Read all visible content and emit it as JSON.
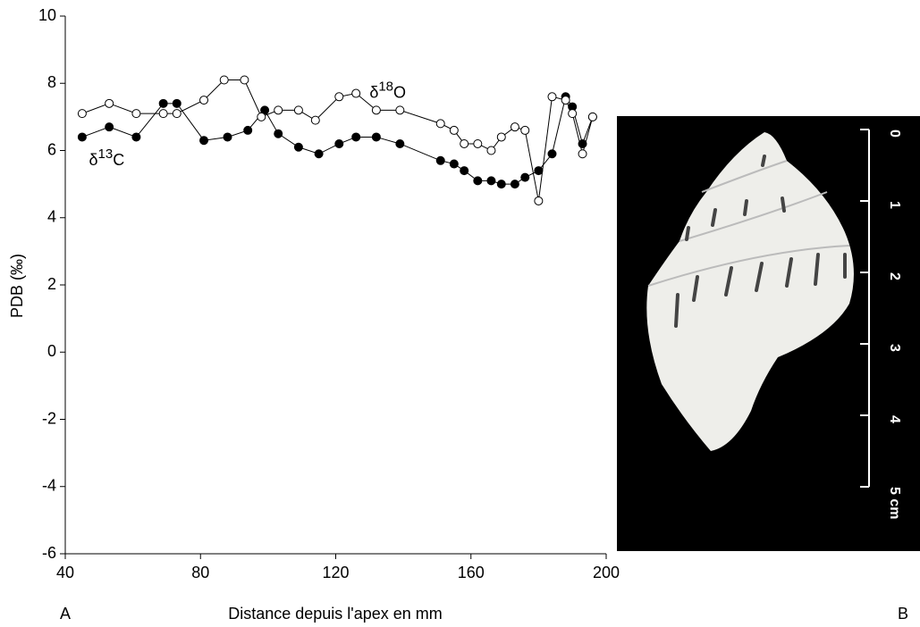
{
  "chart_data": {
    "type": "line",
    "x_label": "Distance depuis l'apex en mm",
    "y_label": "PDB (‰)",
    "panel_label": "A",
    "xlim": [
      40,
      200
    ],
    "xticks": [
      40,
      80,
      120,
      160,
      200
    ],
    "ylim": [
      -6,
      10
    ],
    "yticks": [
      -6,
      -4,
      -2,
      0,
      2,
      4,
      6,
      8,
      10
    ],
    "series": [
      {
        "marker": "filled",
        "color": "#000000",
        "x": [
          45,
          53,
          61,
          69,
          73,
          81,
          88,
          94,
          99,
          103,
          109,
          115,
          121,
          126,
          132,
          139,
          151,
          155,
          158,
          162,
          166,
          169,
          173,
          176,
          180,
          184,
          188,
          190,
          193,
          196
        ],
        "values": [
          6.4,
          6.7,
          6.4,
          7.4,
          7.4,
          6.3,
          6.4,
          6.6,
          7.2,
          6.5,
          6.1,
          5.9,
          6.2,
          6.4,
          6.4,
          6.2,
          5.7,
          5.6,
          5.4,
          5.1,
          5.1,
          5.0,
          5.0,
          5.2,
          5.4,
          5.9,
          7.6,
          7.3,
          6.2,
          7.0
        ]
      },
      {
        "marker": "open",
        "color": "#000000",
        "x": [
          45,
          53,
          61,
          69,
          73,
          81,
          87,
          93,
          98,
          103,
          109,
          114,
          121,
          126,
          132,
          139,
          151,
          155,
          158,
          162,
          166,
          169,
          173,
          176,
          180,
          184,
          188,
          190,
          193,
          196
        ],
        "values": [
          7.1,
          7.4,
          7.1,
          7.1,
          7.1,
          7.5,
          8.1,
          8.1,
          7.0,
          7.2,
          7.2,
          6.9,
          7.6,
          7.7,
          7.2,
          7.2,
          6.8,
          6.6,
          6.2,
          6.2,
          6.0,
          6.4,
          6.7,
          6.6,
          4.5,
          7.6,
          7.5,
          7.1,
          5.9,
          7.0
        ]
      }
    ],
    "annotations": [
      {
        "prefix": "δ",
        "sup": "13",
        "suffix": "C",
        "x": 47,
        "y": 5.7
      },
      {
        "prefix": "δ",
        "sup": "18",
        "suffix": "O",
        "x": 130,
        "y": 7.7
      }
    ]
  },
  "photo": {
    "panel_label": "B",
    "scale_labels": [
      "0",
      "1",
      "2",
      "3",
      "4",
      "5 cm"
    ]
  }
}
